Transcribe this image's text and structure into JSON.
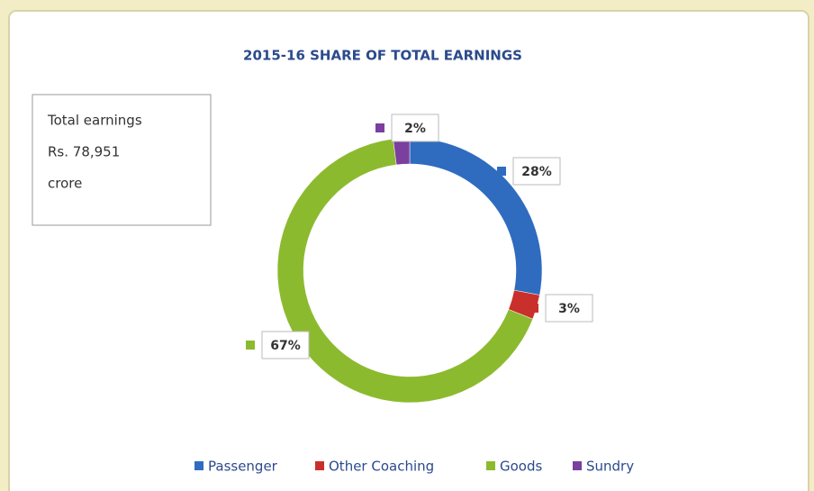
{
  "chart_data": {
    "type": "donut",
    "title": "2015-16 SHARE OF TOTAL EARNINGS",
    "annotation": [
      "Total earnings",
      "Rs. 78,951",
      "crore"
    ],
    "categories": [
      "Passenger",
      "Other Coaching",
      "Goods",
      "Sundry"
    ],
    "values": [
      28,
      3,
      67,
      2
    ],
    "value_labels": [
      "28%",
      "3%",
      "67%",
      "2%"
    ],
    "colors": [
      "#2f6cbf",
      "#c9302b",
      "#8cba2f",
      "#7b3f9d"
    ],
    "legend": "bottom"
  }
}
